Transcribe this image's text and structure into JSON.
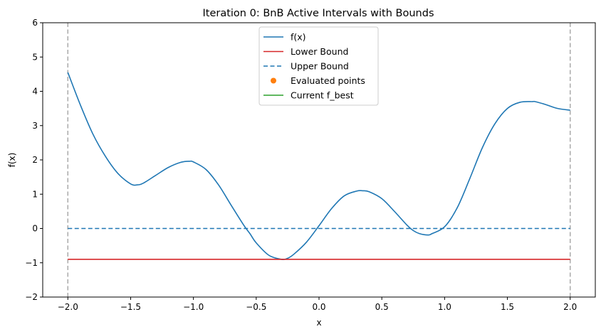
{
  "chart_data": {
    "type": "line",
    "title": "Iteration 0: BnB Active Intervals with Bounds",
    "xlabel": "x",
    "ylabel": "f(x)",
    "xlim": [
      -2.2,
      2.2
    ],
    "ylim": [
      -2,
      6
    ],
    "xticks": [
      -2.0,
      -1.5,
      -1.0,
      -0.5,
      0.0,
      0.5,
      1.0,
      1.5,
      2.0
    ],
    "xtick_labels": [
      "−2.0",
      "−1.5",
      "−1.0",
      "−0.5",
      "0.0",
      "0.5",
      "1.0",
      "1.5",
      "2.0"
    ],
    "yticks": [
      -2,
      -1,
      0,
      1,
      2,
      3,
      4,
      5,
      6
    ],
    "ytick_labels": [
      "−2",
      "−1",
      "0",
      "1",
      "2",
      "3",
      "4",
      "5",
      "6"
    ],
    "grid": false,
    "legend_position": "upper-center",
    "series": [
      {
        "name": "f(x)",
        "style": "solid",
        "color": "#1f77b4",
        "x": [
          -2.0,
          -1.9,
          -1.8,
          -1.7,
          -1.6,
          -1.5,
          -1.45,
          -1.4,
          -1.3,
          -1.2,
          -1.1,
          -1.03,
          -1.0,
          -0.9,
          -0.8,
          -0.7,
          -0.6,
          -0.55,
          -0.5,
          -0.4,
          -0.3,
          -0.25,
          -0.2,
          -0.1,
          0.0,
          0.1,
          0.2,
          0.3,
          0.35,
          0.4,
          0.5,
          0.6,
          0.7,
          0.75,
          0.8,
          0.87,
          0.9,
          1.0,
          1.1,
          1.2,
          1.3,
          1.4,
          1.5,
          1.6,
          1.7,
          1.72,
          1.8,
          1.9,
          2.0
        ],
        "y": [
          4.55,
          3.6,
          2.75,
          2.1,
          1.6,
          1.3,
          1.27,
          1.32,
          1.55,
          1.78,
          1.93,
          1.96,
          1.94,
          1.72,
          1.27,
          0.68,
          0.1,
          -0.15,
          -0.42,
          -0.78,
          -0.9,
          -0.87,
          -0.75,
          -0.4,
          0.08,
          0.58,
          0.95,
          1.09,
          1.1,
          1.07,
          0.87,
          0.5,
          0.1,
          -0.06,
          -0.15,
          -0.19,
          -0.15,
          0.05,
          0.6,
          1.45,
          2.35,
          3.05,
          3.5,
          3.68,
          3.7,
          3.7,
          3.62,
          3.5,
          3.45
        ]
      },
      {
        "name": "Lower Bound",
        "style": "solid",
        "color": "#d62728",
        "x": [
          -2.0,
          2.0
        ],
        "y": [
          -0.9,
          -0.9
        ]
      },
      {
        "name": "Upper Bound",
        "style": "dashed",
        "color": "#1f77b4",
        "x": [
          -2.0,
          2.0
        ],
        "y": [
          0.0,
          0.0
        ]
      },
      {
        "name": "Evaluated points",
        "style": "marker",
        "color": "#ff7f0e",
        "x": [],
        "y": []
      },
      {
        "name": "Current f_best",
        "style": "solid",
        "color": "#2ca02c",
        "x": [],
        "y": []
      }
    ],
    "vertical_lines": [
      {
        "x": -2.0,
        "style": "dashed",
        "color": "#aaaaaa"
      },
      {
        "x": 2.0,
        "style": "dashed",
        "color": "#aaaaaa"
      }
    ]
  }
}
